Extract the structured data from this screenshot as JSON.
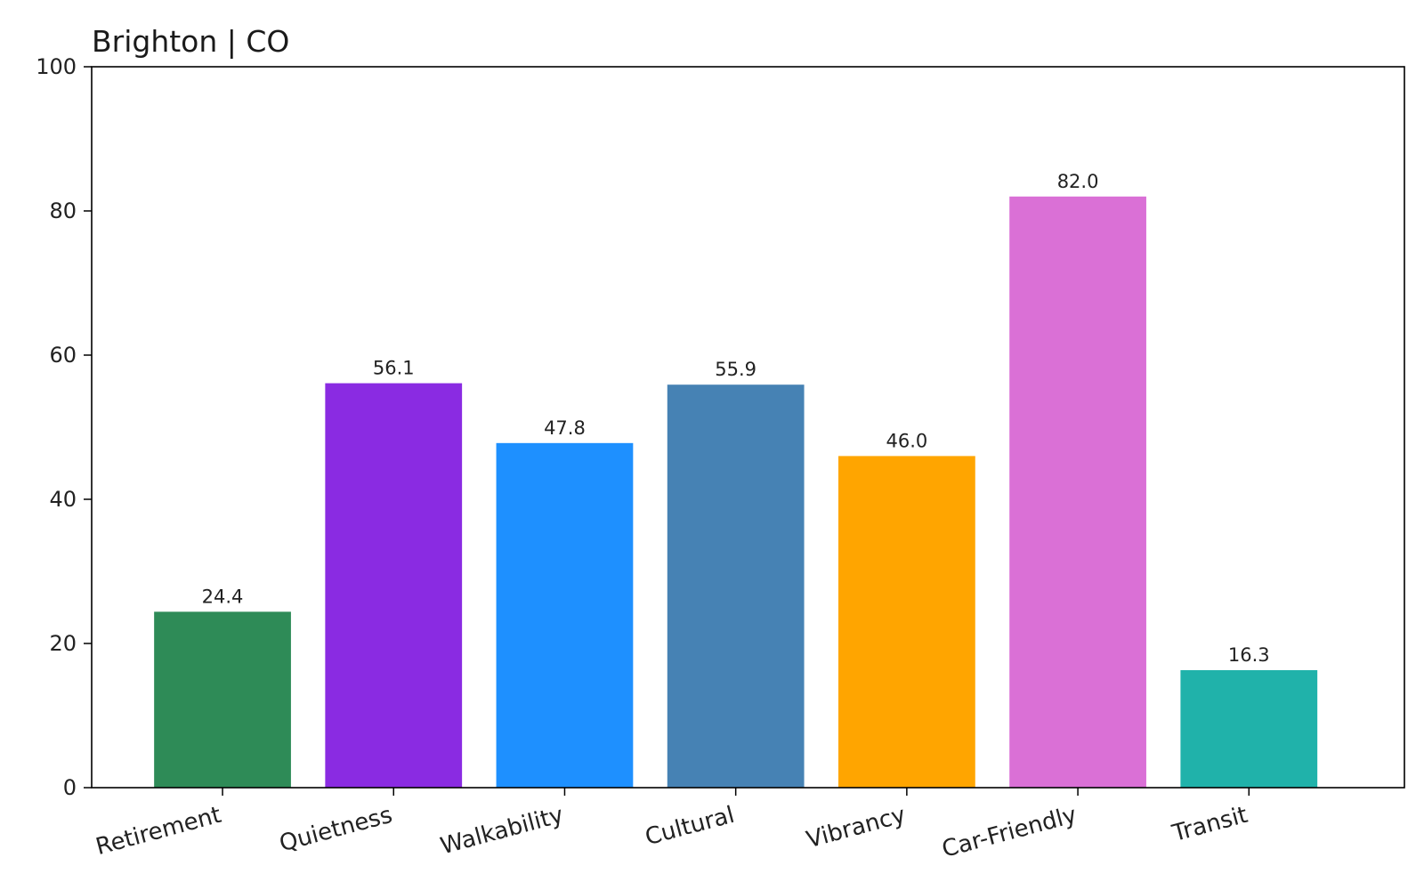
{
  "chart_data": {
    "type": "bar",
    "title": "Brighton | CO",
    "xlabel": "",
    "ylabel": "",
    "categories": [
      "Retirement",
      "Quietness",
      "Walkability",
      "Cultural",
      "Vibrancy",
      "Car-Friendly",
      "Transit"
    ],
    "values": [
      24.4,
      56.1,
      47.8,
      55.9,
      46.0,
      82.0,
      16.3
    ],
    "value_labels": [
      "24.4",
      "56.1",
      "47.8",
      "55.9",
      "46.0",
      "82.0",
      "16.3"
    ],
    "colors": [
      "#2e8b57",
      "#8a2be2",
      "#1e90ff",
      "#4682b4",
      "#ffa500",
      "#da70d6",
      "#20b2aa"
    ],
    "ylim": [
      0,
      100
    ],
    "yticks": [
      0,
      20,
      40,
      60,
      80,
      100
    ],
    "grid": false,
    "legend": "none"
  }
}
